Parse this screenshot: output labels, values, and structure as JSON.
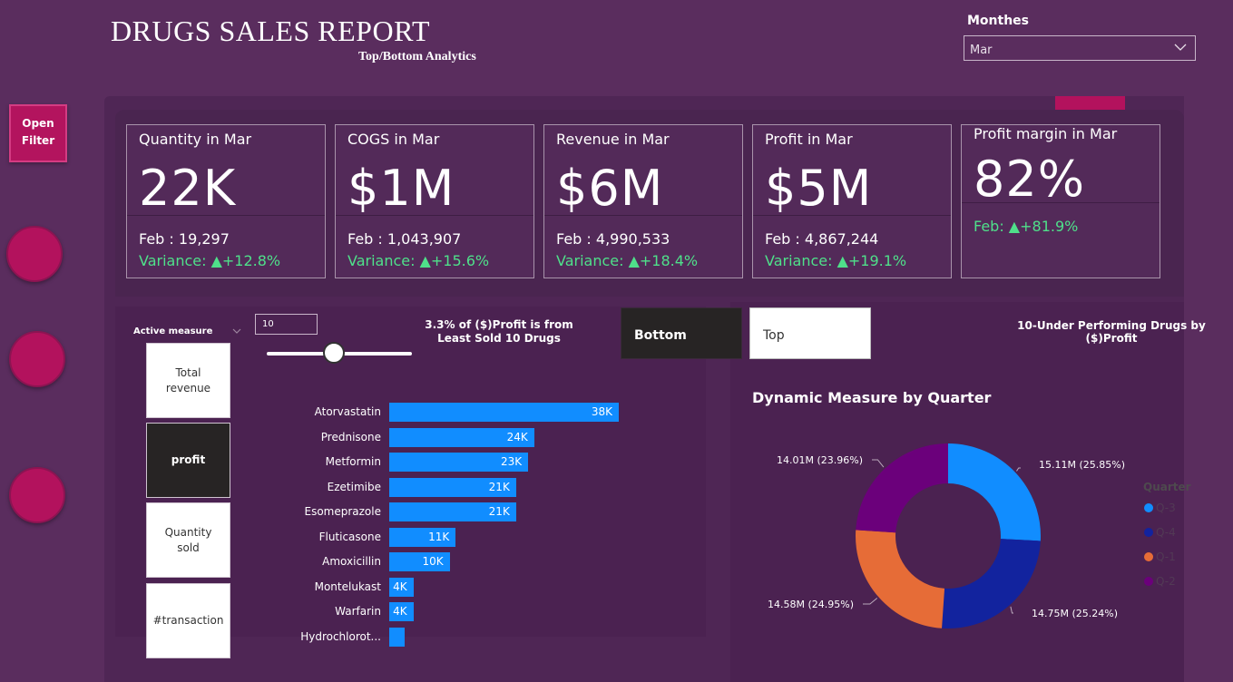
{
  "header": {
    "title": "DRUGS SALES REPORT",
    "subtitle": "Top/Bottom Analytics",
    "month_label": "Monthes",
    "month_value": "Mar"
  },
  "left_rail": {
    "open_filter": "Open\nFilter"
  },
  "kpis": [
    {
      "title": "Quantity in Mar",
      "value": "22K",
      "prev": "Feb : 19,297",
      "variance": "Variance: ▲+12.8%"
    },
    {
      "title": "COGS in Mar",
      "value": "$1M",
      "prev": "Feb : 1,043,907",
      "variance": "Variance: ▲+15.6%"
    },
    {
      "title": "Revenue in Mar",
      "value": "$6M",
      "prev": "Feb : 4,990,533",
      "variance": "Variance: ▲+18.4%"
    },
    {
      "title": "Profit in Mar",
      "value": "$5M",
      "prev": "Feb : 4,867,244",
      "variance": "Variance: ▲+19.1%"
    },
    {
      "title": "Profit margin in Mar",
      "value": "82%",
      "prev": "",
      "variance": "Feb: ▲+81.9%"
    }
  ],
  "measure_selector": {
    "label": "Active measure",
    "options": [
      "Total revenue",
      "profit",
      "Quantity sold",
      "#transaction"
    ],
    "selected": "profit"
  },
  "slider": {
    "value": "10",
    "fraction": 0.5
  },
  "insight_text": "3.3% of ($)Profit is from Least Sold 10 Drugs",
  "toggle": {
    "bottom": "Bottom",
    "top": "Top",
    "selected": "Bottom"
  },
  "under_title": "10-Under Performing Drugs by ($)Profit",
  "donut_title": "Dynamic Measure by Quarter",
  "legend": {
    "title": "Quarter",
    "items": [
      {
        "name": "Q-3",
        "color": "#118dff"
      },
      {
        "name": "Q-4",
        "color": "#12239e"
      },
      {
        "name": "Q-1",
        "color": "#e66c37"
      },
      {
        "name": "Q-2",
        "color": "#6b007b"
      }
    ]
  },
  "chart_data": [
    {
      "type": "bar",
      "orientation": "horizontal",
      "categories": [
        "Atorvastatin",
        "Prednisone",
        "Metformin",
        "Ezetimibe",
        "Esomeprazole",
        "Fluticasone",
        "Amoxicillin",
        "Montelukast",
        "Warfarin",
        "Hydrochlorot..."
      ],
      "values": [
        38000,
        24000,
        23000,
        21000,
        21000,
        11000,
        10000,
        4000,
        4000,
        2500
      ],
      "data_labels": [
        "38K",
        "24K",
        "23K",
        "21K",
        "21K",
        "11K",
        "10K",
        "4K",
        "4K",
        ""
      ],
      "color": "#118dff",
      "xlim": [
        0,
        38000
      ]
    },
    {
      "type": "pie",
      "variant": "donut",
      "title": "Dynamic Measure by Quarter",
      "slices": [
        {
          "name": "Q-3",
          "value": 15.11,
          "label": "15.11M (25.85%)",
          "color": "#118dff"
        },
        {
          "name": "Q-4",
          "value": 14.75,
          "label": "14.75M (25.24%)",
          "color": "#12239e"
        },
        {
          "name": "Q-1",
          "value": 14.58,
          "label": "14.58M (24.95%)",
          "color": "#e66c37"
        },
        {
          "name": "Q-2",
          "value": 14.01,
          "label": "14.01M (23.96%)",
          "color": "#6b007b"
        }
      ],
      "legend_title": "Quarter",
      "legend_position": "right"
    }
  ]
}
